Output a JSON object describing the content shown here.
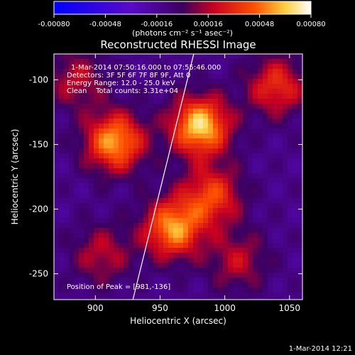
{
  "chart_data": {
    "type": "heatmap",
    "title": "Reconstructed RHESSI Image",
    "xlabel": "Heliocentric X (arcsec)",
    "ylabel": "Heliocentric Y (arcsec)",
    "xlim": [
      868,
      1060
    ],
    "ylim": [
      -270,
      -80
    ],
    "x_ticks": [
      900,
      950,
      1000,
      1050
    ],
    "y_ticks": [
      -100,
      -150,
      -200,
      -250
    ],
    "colorbar": {
      "label": "(photons cm⁻² s⁻¹ asec⁻²)",
      "range": [
        -0.0008,
        0.0008
      ],
      "ticks": [
        "-0.00080",
        "-0.00048",
        "-0.00016",
        "0.00016",
        "0.00048",
        "0.00080"
      ]
    },
    "annotations": {
      "time_range": "1-Mar-2014 07:50:16.000 to 07:55:46.000",
      "detectors": "Detectors: 3F 5F 6F 7F 8F 9F, Att 0",
      "energy": "Energy Range: 12.0 - 25.0 keV",
      "method_counts": "Clean    Total counts: 3.31e+04",
      "peak": "Position of Peak = [981,-136]"
    },
    "sources": [
      {
        "x": 981,
        "y": -136,
        "intensity": 0.0008
      },
      {
        "x": 915,
        "y": -148,
        "intensity": 0.0007
      },
      {
        "x": 960,
        "y": -215,
        "intensity": 0.00068
      },
      {
        "x": 990,
        "y": -190,
        "intensity": 0.0005
      },
      {
        "x": 1040,
        "y": -105,
        "intensity": 0.00045
      },
      {
        "x": 1010,
        "y": -240,
        "intensity": 0.0003
      },
      {
        "x": 905,
        "y": -235,
        "intensity": 0.0003
      },
      {
        "x": 885,
        "y": -100,
        "intensity": 0.0003
      }
    ],
    "limb_line": [
      [
        929,
        -270
      ],
      [
        976,
        -80
      ]
    ]
  },
  "footer": {
    "date": "1-Mar-2014 12:21"
  }
}
